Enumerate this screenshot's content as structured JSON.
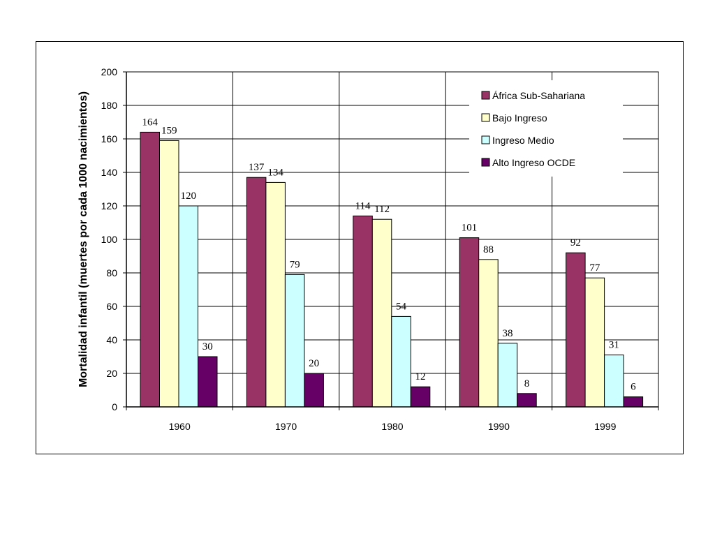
{
  "chart_data": {
    "type": "bar",
    "title": "",
    "xlabel": "",
    "ylabel": "Mortalidad infantil (muertes por cada 1000 nacimientos)",
    "ylim": [
      0,
      200
    ],
    "yticks": [
      0,
      20,
      40,
      60,
      80,
      100,
      120,
      140,
      160,
      180,
      200
    ],
    "grid": true,
    "legend_position": "top-right",
    "categories": [
      "1960",
      "1970",
      "1980",
      "1990",
      "1999"
    ],
    "series": [
      {
        "name": "África Sub-Sahariana",
        "color": "#993366",
        "values": [
          164,
          137,
          114,
          101,
          92
        ]
      },
      {
        "name": "Bajo Ingreso",
        "color": "#FFFFCC",
        "values": [
          159,
          134,
          112,
          88,
          77
        ]
      },
      {
        "name": "Ingreso Medio",
        "color": "#CCFFFF",
        "values": [
          120,
          79,
          54,
          38,
          31
        ]
      },
      {
        "name": "Alto Ingreso OCDE",
        "color": "#660066",
        "values": [
          30,
          20,
          12,
          8,
          6
        ]
      }
    ]
  }
}
